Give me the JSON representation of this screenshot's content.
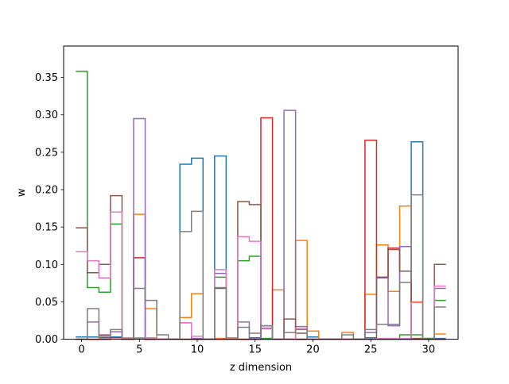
{
  "chart_data": {
    "type": "step",
    "title": "",
    "xlabel": "z dimension",
    "ylabel": "w",
    "xlim": [
      -1.55,
      32.55
    ],
    "ylim": [
      0,
      0.392
    ],
    "x_ticks": [
      0,
      5,
      10,
      15,
      20,
      25,
      30
    ],
    "y_ticks": [
      0.0,
      0.05,
      0.1,
      0.15,
      0.2,
      0.25,
      0.3,
      0.35
    ],
    "y_tick_labels": [
      "0.00",
      "0.05",
      "0.10",
      "0.15",
      "0.20",
      "0.25",
      "0.30",
      "0.35"
    ],
    "grid": false,
    "legend": "none",
    "x": [
      0,
      1,
      2,
      3,
      4,
      5,
      6,
      7,
      8,
      9,
      10,
      11,
      12,
      13,
      14,
      15,
      16,
      17,
      18,
      19,
      20,
      21,
      22,
      23,
      24,
      25,
      26,
      27,
      28,
      29,
      30,
      31
    ],
    "series": [
      {
        "color": "#1f77b4",
        "values": [
          0.003,
          0.003,
          0.002,
          0.003,
          0,
          0.001,
          0,
          0,
          0,
          0.234,
          0.242,
          0,
          0.245,
          0,
          0,
          0.002,
          0,
          0,
          0,
          0,
          0.003,
          0,
          0,
          0,
          0,
          0.002,
          0,
          0,
          0,
          0.264,
          0.001,
          0.001
        ]
      },
      {
        "color": "#ff7f0e",
        "values": [
          0,
          0,
          0.005,
          0.002,
          0.001,
          0.167,
          0.041,
          0,
          0,
          0.029,
          0.061,
          0,
          0.001,
          0.002,
          0,
          0,
          0.001,
          0.066,
          0,
          0.132,
          0.011,
          0,
          0,
          0.009,
          0,
          0.06,
          0.126,
          0.064,
          0.178,
          0.05,
          0.001,
          0.007
        ]
      },
      {
        "color": "#2ca02c",
        "values": [
          0.358,
          0.069,
          0.063,
          0.154,
          0,
          0.001,
          0,
          0,
          0,
          0,
          0,
          0,
          0.083,
          0,
          0.105,
          0.111,
          0.001,
          0,
          0,
          0,
          0,
          0,
          0,
          0,
          0,
          0,
          0,
          0,
          0.006,
          0.006,
          0.001,
          0.052
        ]
      },
      {
        "color": "#d62728",
        "values": [
          0,
          0,
          0,
          0.002,
          0,
          0.109,
          0,
          0,
          0,
          0,
          0,
          0,
          0,
          0,
          0,
          0,
          0.296,
          0,
          0,
          0,
          0,
          0,
          0,
          0,
          0,
          0.266,
          0.083,
          0.122,
          0.091,
          0,
          0,
          0
        ]
      },
      {
        "color": "#9467bd",
        "values": [
          0,
          0.023,
          0.006,
          0.01,
          0,
          0.295,
          0,
          0,
          0,
          0.022,
          0.001,
          0,
          0.088,
          0,
          0.023,
          0,
          0.015,
          0,
          0.306,
          0.017,
          0,
          0,
          0,
          0,
          0,
          0.009,
          0.082,
          0.018,
          0.124,
          0,
          0,
          0.068
        ]
      },
      {
        "color": "#8c564b",
        "values": [
          0.149,
          0.089,
          0.1,
          0.192,
          0,
          0.002,
          0,
          0,
          0,
          0,
          0,
          0,
          0.068,
          0,
          0.184,
          0.18,
          0.018,
          0,
          0.027,
          0.008,
          0,
          0,
          0,
          0,
          0,
          0,
          0.083,
          0.12,
          0.091,
          0.001,
          0,
          0.1
        ]
      },
      {
        "color": "#e377c2",
        "values": [
          0.117,
          0.105,
          0.082,
          0.17,
          0.002,
          0.002,
          0.002,
          0,
          0,
          0.022,
          0.004,
          0,
          0.093,
          0,
          0.137,
          0.131,
          0.014,
          0,
          0,
          0.014,
          0,
          0,
          0,
          0,
          0,
          0,
          0.001,
          0.001,
          0.001,
          0.049,
          0,
          0.071
        ]
      },
      {
        "color": "#7f7f7f",
        "values": [
          0,
          0.041,
          0.004,
          0.013,
          0,
          0.068,
          0.052,
          0.006,
          0,
          0.144,
          0.171,
          0,
          0.069,
          0,
          0.016,
          0.008,
          0.018,
          0,
          0.009,
          0.013,
          0,
          0,
          0,
          0.006,
          0,
          0.013,
          0.02,
          0.02,
          0.076,
          0.193,
          0,
          0.043
        ]
      }
    ]
  }
}
